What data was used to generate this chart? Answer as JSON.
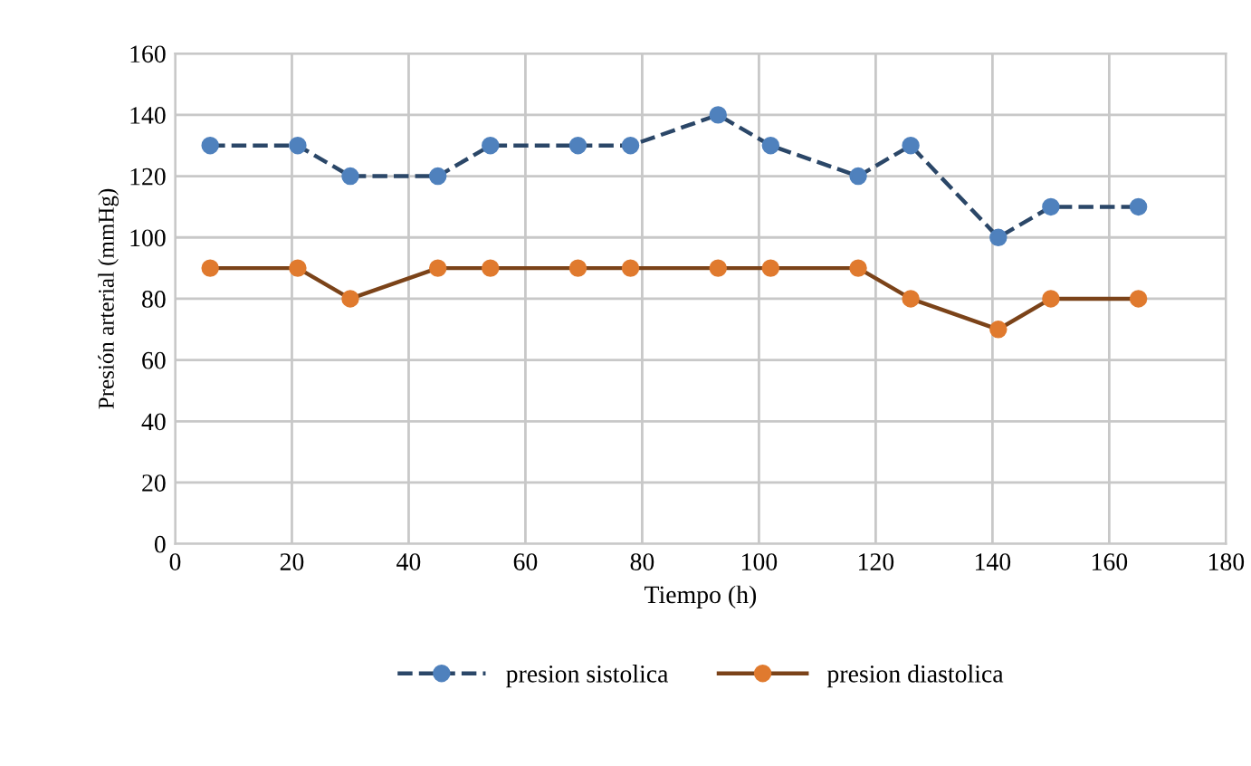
{
  "chart_data": {
    "type": "line",
    "xlabel": "Tiempo (h)",
    "ylabel": "Presión arterial (mmHg)",
    "x": [
      6,
      21,
      30,
      45,
      54,
      69,
      78,
      93,
      102,
      117,
      126,
      141,
      150,
      165
    ],
    "series": [
      {
        "name": "presion sistolica",
        "color": "#4f81bd",
        "line_style": "dashed",
        "values": [
          130,
          130,
          120,
          120,
          130,
          130,
          130,
          140,
          130,
          120,
          130,
          100,
          110,
          110
        ]
      },
      {
        "name": "presion diastolica",
        "color": "#e07a2e",
        "line_style": "solid",
        "values": [
          90,
          90,
          80,
          90,
          90,
          90,
          90,
          90,
          90,
          90,
          80,
          70,
          80,
          80
        ]
      }
    ],
    "marker": "circle",
    "xlim": [
      0,
      180
    ],
    "xticks": [
      0,
      20,
      40,
      60,
      80,
      100,
      120,
      140,
      160,
      180
    ],
    "ylim": [
      0,
      160
    ],
    "yticks": [
      0,
      20,
      40,
      60,
      80,
      100,
      120,
      140,
      160
    ],
    "grid": true,
    "legend": "bottom"
  }
}
